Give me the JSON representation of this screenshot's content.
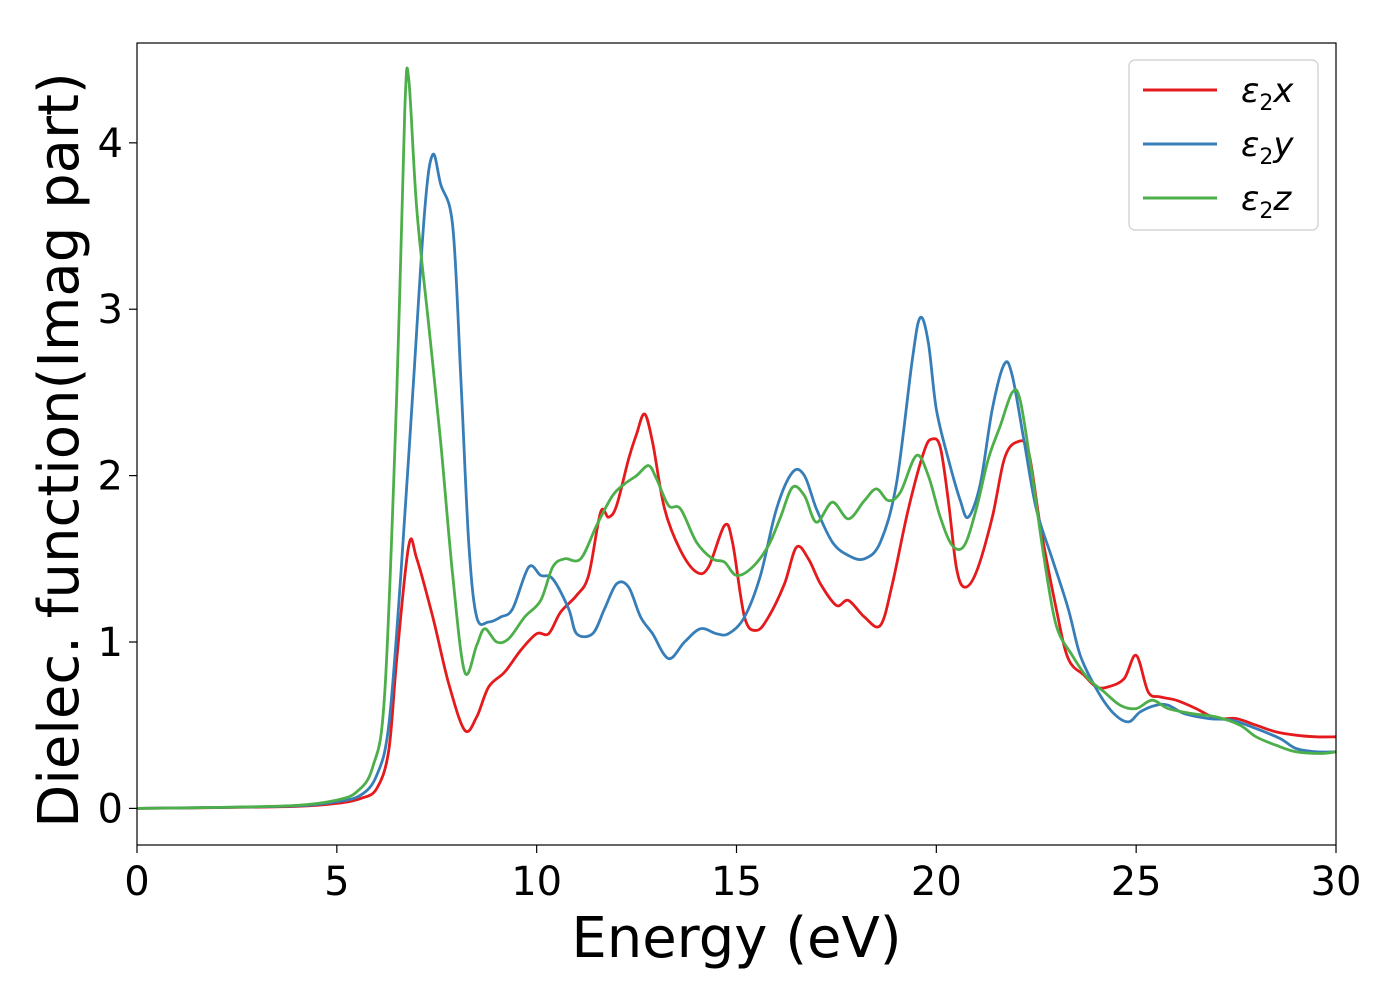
{
  "chart_data": {
    "type": "line",
    "title": "",
    "xlabel": "Energy (eV)",
    "ylabel": "Dielec. function(Imag part)",
    "xlim": [
      0,
      30
    ],
    "ylim": [
      -0.22,
      4.6
    ],
    "xticks": [
      0,
      5,
      10,
      15,
      20,
      25,
      30
    ],
    "yticks": [
      0,
      1,
      2,
      3,
      4
    ],
    "grid": false,
    "legend_position": "top-right",
    "series": [
      {
        "name_base": "ε",
        "name_sub": "2",
        "name_axis": "x",
        "color": "#e41a1c",
        "points": [
          [
            0,
            0
          ],
          [
            2,
            0.005
          ],
          [
            4,
            0.012
          ],
          [
            5,
            0.03
          ],
          [
            5.6,
            0.06
          ],
          [
            6,
            0.12
          ],
          [
            6.3,
            0.35
          ],
          [
            6.5,
            0.9
          ],
          [
            6.8,
            1.58
          ],
          [
            7.0,
            1.5
          ],
          [
            7.4,
            1.15
          ],
          [
            7.8,
            0.75
          ],
          [
            8.2,
            0.47
          ],
          [
            8.5,
            0.55
          ],
          [
            8.8,
            0.73
          ],
          [
            9.2,
            0.82
          ],
          [
            9.6,
            0.95
          ],
          [
            10.0,
            1.05
          ],
          [
            10.3,
            1.05
          ],
          [
            10.6,
            1.18
          ],
          [
            11.0,
            1.28
          ],
          [
            11.3,
            1.4
          ],
          [
            11.6,
            1.78
          ],
          [
            11.8,
            1.75
          ],
          [
            12.0,
            1.82
          ],
          [
            12.3,
            2.1
          ],
          [
            12.5,
            2.25
          ],
          [
            12.7,
            2.37
          ],
          [
            12.9,
            2.2
          ],
          [
            13.2,
            1.8
          ],
          [
            13.6,
            1.55
          ],
          [
            14.0,
            1.42
          ],
          [
            14.3,
            1.45
          ],
          [
            14.7,
            1.7
          ],
          [
            14.9,
            1.6
          ],
          [
            15.2,
            1.15
          ],
          [
            15.5,
            1.07
          ],
          [
            15.8,
            1.15
          ],
          [
            16.2,
            1.35
          ],
          [
            16.5,
            1.57
          ],
          [
            16.8,
            1.5
          ],
          [
            17.1,
            1.35
          ],
          [
            17.5,
            1.22
          ],
          [
            17.8,
            1.25
          ],
          [
            18.2,
            1.15
          ],
          [
            18.6,
            1.1
          ],
          [
            18.9,
            1.35
          ],
          [
            19.3,
            1.8
          ],
          [
            19.7,
            2.15
          ],
          [
            19.9,
            2.22
          ],
          [
            20.1,
            2.17
          ],
          [
            20.3,
            1.85
          ],
          [
            20.5,
            1.45
          ],
          [
            20.7,
            1.33
          ],
          [
            21.0,
            1.42
          ],
          [
            21.4,
            1.75
          ],
          [
            21.7,
            2.1
          ],
          [
            22.0,
            2.2
          ],
          [
            22.3,
            2.15
          ],
          [
            22.6,
            1.7
          ],
          [
            23.0,
            1.2
          ],
          [
            23.3,
            0.9
          ],
          [
            23.7,
            0.8
          ],
          [
            24.0,
            0.73
          ],
          [
            24.3,
            0.73
          ],
          [
            24.7,
            0.78
          ],
          [
            25.0,
            0.92
          ],
          [
            25.3,
            0.7
          ],
          [
            25.6,
            0.67
          ],
          [
            26.0,
            0.65
          ],
          [
            26.5,
            0.6
          ],
          [
            27.0,
            0.54
          ],
          [
            27.5,
            0.54
          ],
          [
            28.0,
            0.5
          ],
          [
            28.5,
            0.46
          ],
          [
            29.0,
            0.44
          ],
          [
            29.5,
            0.43
          ],
          [
            30,
            0.43
          ]
        ]
      },
      {
        "name_base": "ε",
        "name_sub": "2",
        "name_axis": "y",
        "color": "#377eb8",
        "points": [
          [
            0,
            0
          ],
          [
            2,
            0.006
          ],
          [
            4,
            0.015
          ],
          [
            5,
            0.04
          ],
          [
            5.6,
            0.08
          ],
          [
            6,
            0.2
          ],
          [
            6.3,
            0.5
          ],
          [
            6.6,
            1.4
          ],
          [
            6.9,
            2.5
          ],
          [
            7.2,
            3.6
          ],
          [
            7.4,
            3.93
          ],
          [
            7.6,
            3.75
          ],
          [
            7.9,
            3.5
          ],
          [
            8.1,
            2.6
          ],
          [
            8.3,
            1.6
          ],
          [
            8.5,
            1.15
          ],
          [
            8.8,
            1.12
          ],
          [
            9.1,
            1.15
          ],
          [
            9.4,
            1.2
          ],
          [
            9.8,
            1.45
          ],
          [
            10.1,
            1.4
          ],
          [
            10.4,
            1.38
          ],
          [
            10.8,
            1.2
          ],
          [
            11.0,
            1.05
          ],
          [
            11.4,
            1.05
          ],
          [
            11.7,
            1.2
          ],
          [
            12.0,
            1.35
          ],
          [
            12.3,
            1.33
          ],
          [
            12.6,
            1.15
          ],
          [
            12.9,
            1.05
          ],
          [
            13.3,
            0.9
          ],
          [
            13.7,
            1.0
          ],
          [
            14.1,
            1.08
          ],
          [
            14.5,
            1.05
          ],
          [
            14.8,
            1.05
          ],
          [
            15.2,
            1.15
          ],
          [
            15.6,
            1.4
          ],
          [
            16.0,
            1.8
          ],
          [
            16.4,
            2.02
          ],
          [
            16.7,
            2.0
          ],
          [
            17.0,
            1.8
          ],
          [
            17.4,
            1.6
          ],
          [
            17.8,
            1.52
          ],
          [
            18.2,
            1.5
          ],
          [
            18.6,
            1.6
          ],
          [
            19.0,
            1.95
          ],
          [
            19.4,
            2.7
          ],
          [
            19.6,
            2.95
          ],
          [
            19.8,
            2.8
          ],
          [
            20.0,
            2.4
          ],
          [
            20.3,
            2.1
          ],
          [
            20.6,
            1.85
          ],
          [
            20.8,
            1.75
          ],
          [
            21.1,
            1.95
          ],
          [
            21.4,
            2.4
          ],
          [
            21.7,
            2.67
          ],
          [
            21.9,
            2.6
          ],
          [
            22.2,
            2.2
          ],
          [
            22.5,
            1.8
          ],
          [
            22.9,
            1.5
          ],
          [
            23.3,
            1.2
          ],
          [
            23.6,
            0.92
          ],
          [
            24.0,
            0.72
          ],
          [
            24.4,
            0.58
          ],
          [
            24.8,
            0.52
          ],
          [
            25.1,
            0.58
          ],
          [
            25.5,
            0.62
          ],
          [
            25.8,
            0.62
          ],
          [
            26.2,
            0.57
          ],
          [
            26.8,
            0.54
          ],
          [
            27.4,
            0.53
          ],
          [
            28.0,
            0.48
          ],
          [
            28.6,
            0.42
          ],
          [
            29.0,
            0.36
          ],
          [
            29.5,
            0.34
          ],
          [
            30,
            0.34
          ]
        ]
      },
      {
        "name_base": "ε",
        "name_sub": "2",
        "name_axis": "z",
        "color": "#4daf4a",
        "points": [
          [
            0,
            0
          ],
          [
            2,
            0.006
          ],
          [
            4,
            0.018
          ],
          [
            5,
            0.05
          ],
          [
            5.5,
            0.1
          ],
          [
            5.9,
            0.25
          ],
          [
            6.2,
            0.7
          ],
          [
            6.5,
            2.5
          ],
          [
            6.7,
            4.2
          ],
          [
            6.8,
            4.38
          ],
          [
            7.0,
            3.6
          ],
          [
            7.3,
            2.9
          ],
          [
            7.6,
            2.2
          ],
          [
            7.9,
            1.4
          ],
          [
            8.2,
            0.82
          ],
          [
            8.5,
            0.98
          ],
          [
            8.7,
            1.08
          ],
          [
            9.0,
            1.0
          ],
          [
            9.3,
            1.02
          ],
          [
            9.7,
            1.15
          ],
          [
            10.1,
            1.25
          ],
          [
            10.4,
            1.45
          ],
          [
            10.7,
            1.5
          ],
          [
            11.1,
            1.5
          ],
          [
            11.5,
            1.7
          ],
          [
            11.9,
            1.88
          ],
          [
            12.2,
            1.95
          ],
          [
            12.5,
            2.0
          ],
          [
            12.8,
            2.06
          ],
          [
            13.0,
            1.98
          ],
          [
            13.3,
            1.82
          ],
          [
            13.6,
            1.8
          ],
          [
            14.0,
            1.6
          ],
          [
            14.4,
            1.5
          ],
          [
            14.7,
            1.48
          ],
          [
            15.0,
            1.4
          ],
          [
            15.4,
            1.45
          ],
          [
            15.8,
            1.58
          ],
          [
            16.1,
            1.75
          ],
          [
            16.4,
            1.93
          ],
          [
            16.7,
            1.88
          ],
          [
            17.0,
            1.72
          ],
          [
            17.4,
            1.84
          ],
          [
            17.8,
            1.74
          ],
          [
            18.2,
            1.85
          ],
          [
            18.5,
            1.92
          ],
          [
            18.8,
            1.85
          ],
          [
            19.1,
            1.9
          ],
          [
            19.5,
            2.12
          ],
          [
            19.8,
            2.0
          ],
          [
            20.1,
            1.75
          ],
          [
            20.4,
            1.58
          ],
          [
            20.7,
            1.58
          ],
          [
            21.0,
            1.8
          ],
          [
            21.3,
            2.1
          ],
          [
            21.6,
            2.3
          ],
          [
            21.9,
            2.5
          ],
          [
            22.1,
            2.45
          ],
          [
            22.4,
            2.0
          ],
          [
            22.7,
            1.5
          ],
          [
            23.0,
            1.1
          ],
          [
            23.4,
            0.92
          ],
          [
            23.8,
            0.78
          ],
          [
            24.2,
            0.7
          ],
          [
            24.6,
            0.62
          ],
          [
            25.0,
            0.6
          ],
          [
            25.4,
            0.65
          ],
          [
            25.8,
            0.6
          ],
          [
            26.4,
            0.57
          ],
          [
            27.0,
            0.55
          ],
          [
            27.6,
            0.5
          ],
          [
            28.0,
            0.43
          ],
          [
            28.5,
            0.38
          ],
          [
            29.0,
            0.34
          ],
          [
            29.6,
            0.33
          ],
          [
            30,
            0.34
          ]
        ]
      }
    ]
  }
}
